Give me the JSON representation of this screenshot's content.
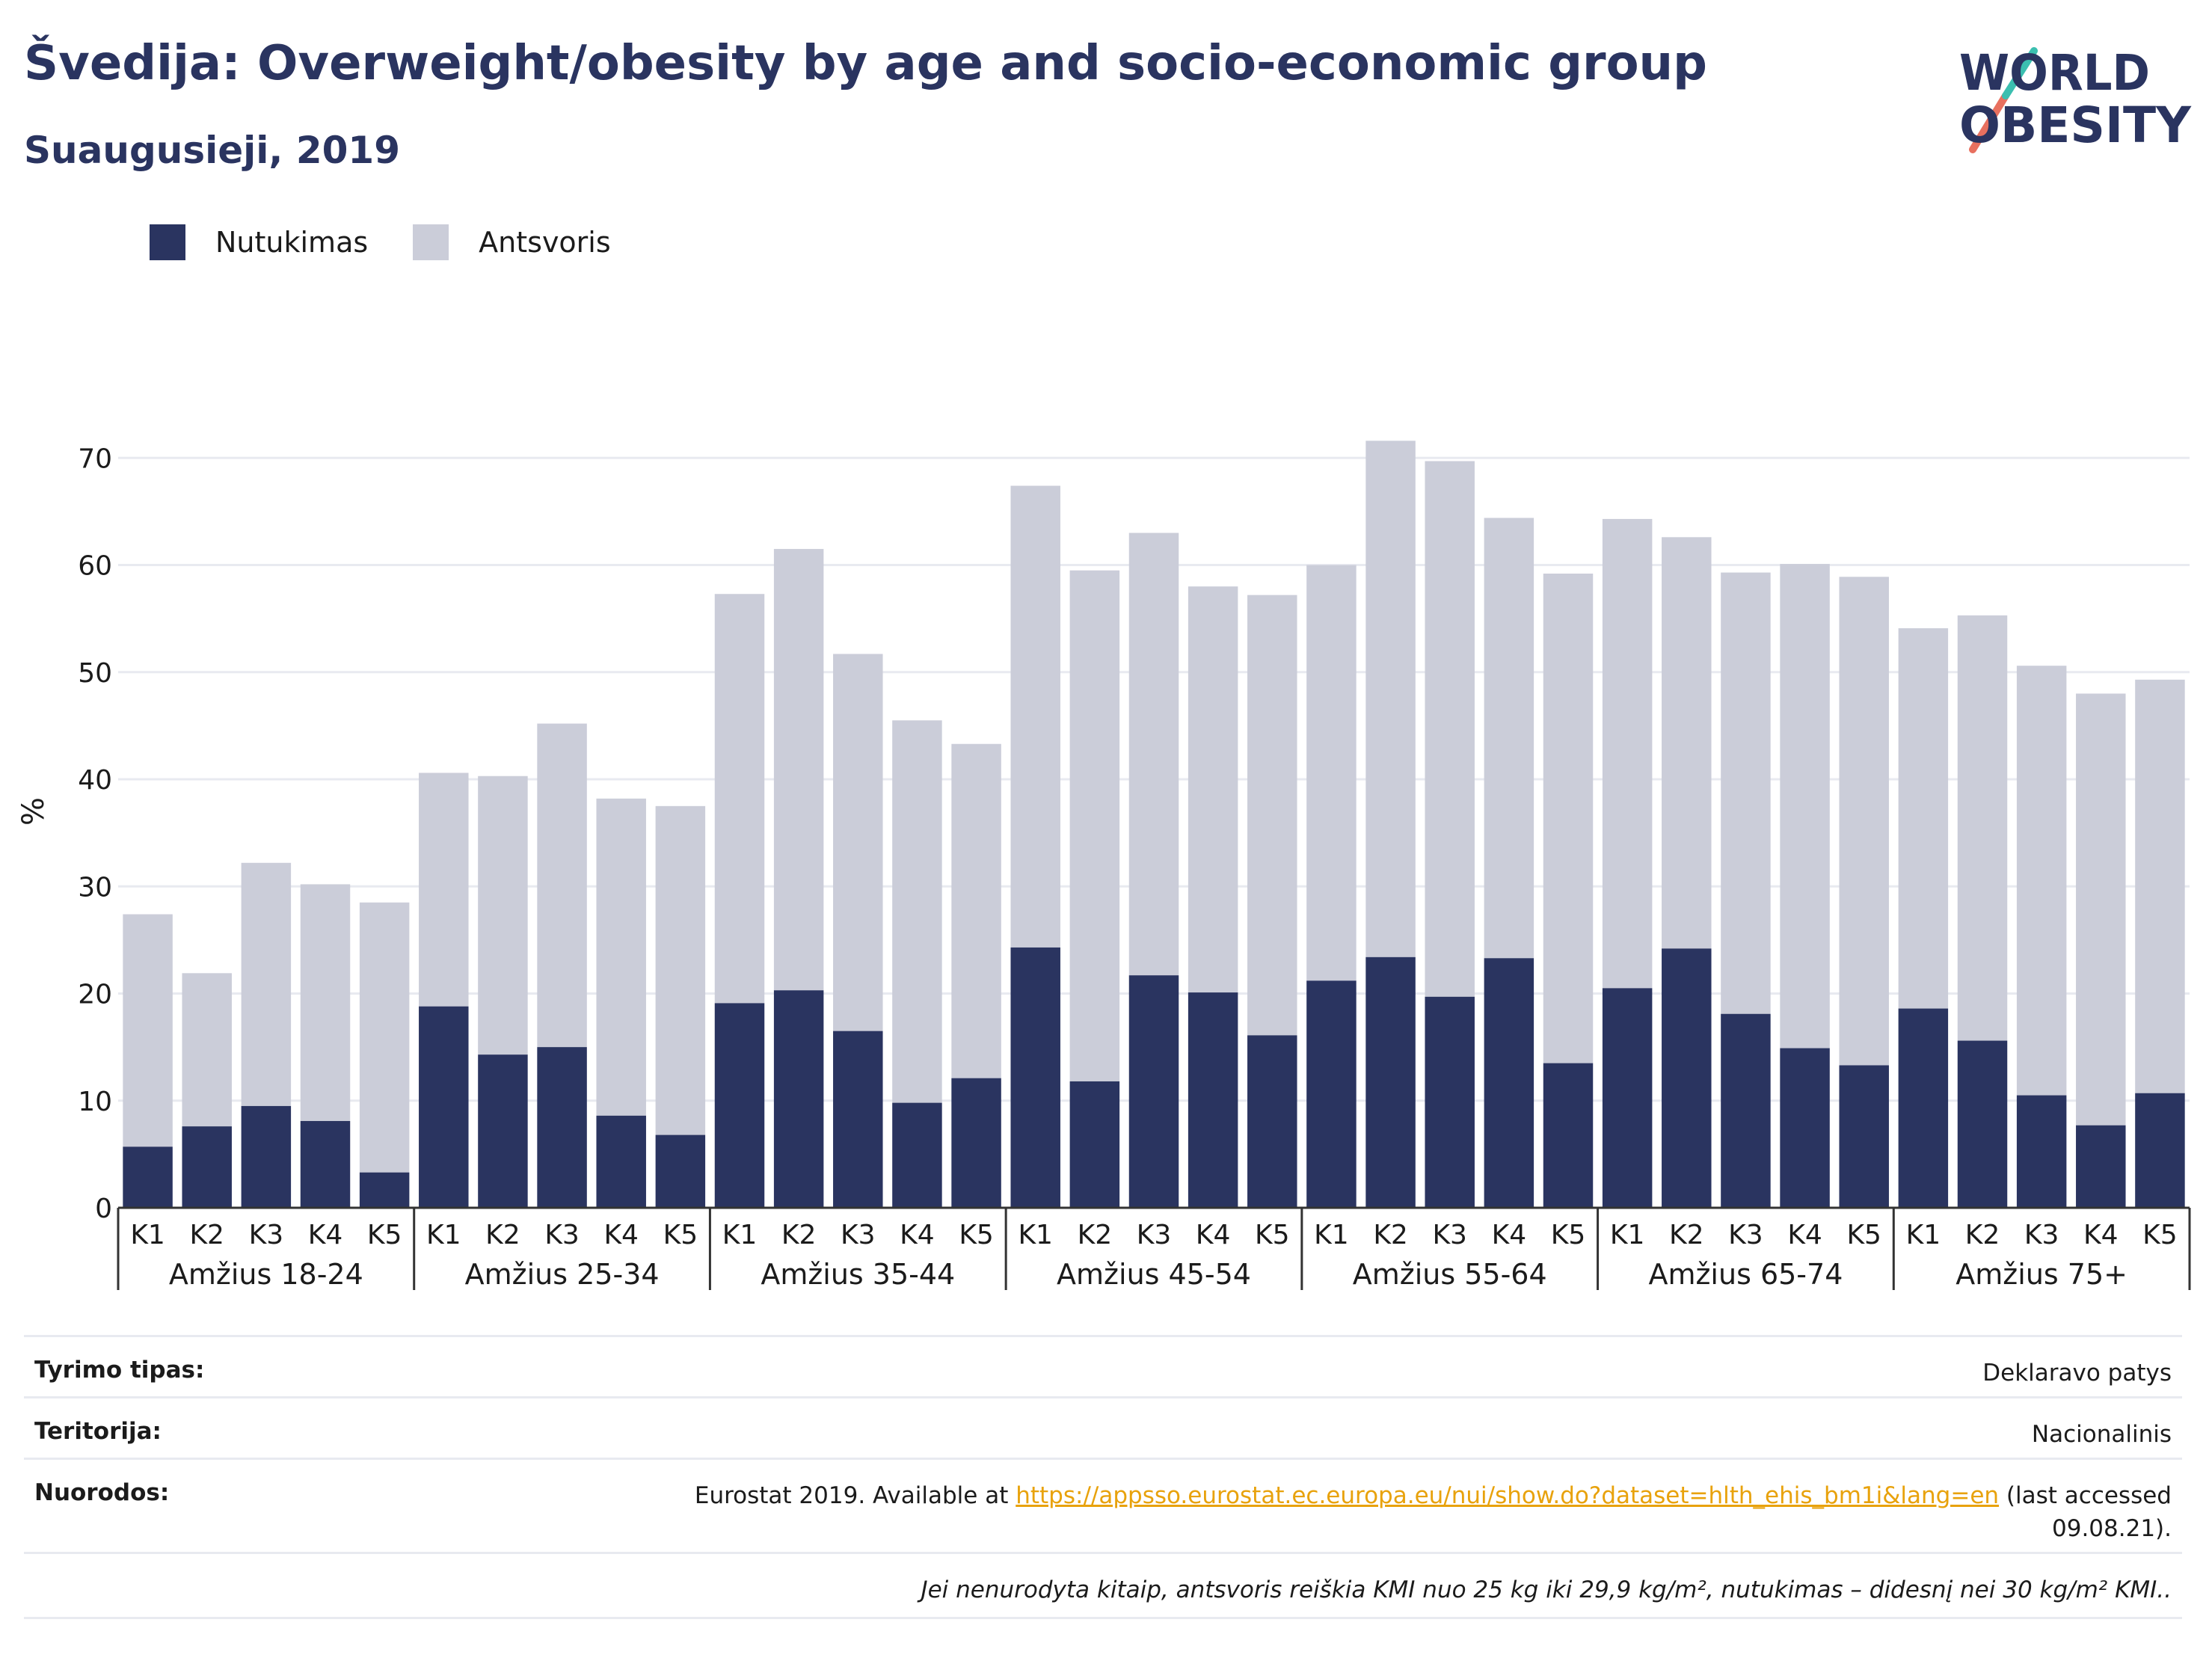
{
  "header": {
    "title": "Švedija: Overweight/obesity by age and socio-economic group",
    "subtitle": "Suaugusieji, 2019"
  },
  "logo": {
    "line1": "WORLD",
    "line2": "OBESITY",
    "colors": {
      "text": "#2a3460",
      "slash_top": "#3bbfb0",
      "slash_bottom": "#e8705f"
    }
  },
  "colors": {
    "obesity": "#2a3460",
    "overweight": "#cbcdd9",
    "grid": "#e8eaf0",
    "axis": "#333333"
  },
  "legend": [
    {
      "label": "Nutukimas",
      "color": "#2a3460"
    },
    {
      "label": "Antsvoris",
      "color": "#cbcdd9"
    }
  ],
  "chart_data": {
    "type": "bar",
    "stacked": true,
    "ylabel": "%",
    "ylim": [
      0,
      74
    ],
    "yticks": [
      0,
      10,
      20,
      30,
      40,
      50,
      60,
      70
    ],
    "grid": true,
    "legend_position": "top-left",
    "groups": [
      {
        "label": "Amžius 18-24",
        "categories": [
          "K1",
          "K2",
          "K3",
          "K4",
          "K5"
        ],
        "obesity": [
          5.7,
          7.6,
          9.5,
          8.1,
          3.3
        ],
        "total": [
          27.4,
          21.9,
          32.2,
          30.2,
          28.5
        ]
      },
      {
        "label": "Amžius 25-34",
        "categories": [
          "K1",
          "K2",
          "K3",
          "K4",
          "K5"
        ],
        "obesity": [
          18.8,
          14.3,
          15.0,
          8.6,
          6.8
        ],
        "total": [
          40.6,
          40.3,
          45.2,
          38.2,
          37.5
        ]
      },
      {
        "label": "Amžius 35-44",
        "categories": [
          "K1",
          "K2",
          "K3",
          "K4",
          "K5"
        ],
        "obesity": [
          19.1,
          20.3,
          16.5,
          9.8,
          12.1
        ],
        "total": [
          57.3,
          61.5,
          51.7,
          45.5,
          43.3
        ]
      },
      {
        "label": "Amžius 45-54",
        "categories": [
          "K1",
          "K2",
          "K3",
          "K4",
          "K5"
        ],
        "obesity": [
          24.3,
          11.8,
          21.7,
          20.1,
          16.1
        ],
        "total": [
          67.4,
          59.5,
          63.0,
          58.0,
          57.2
        ]
      },
      {
        "label": "Amžius 55-64",
        "categories": [
          "K1",
          "K2",
          "K3",
          "K4",
          "K5"
        ],
        "obesity": [
          21.2,
          23.4,
          19.7,
          23.3,
          13.5
        ],
        "total": [
          60.0,
          71.6,
          69.7,
          64.4,
          59.2
        ]
      },
      {
        "label": "Amžius 65-74",
        "categories": [
          "K1",
          "K2",
          "K3",
          "K4",
          "K5"
        ],
        "obesity": [
          20.5,
          24.2,
          18.1,
          14.9,
          13.3
        ],
        "total": [
          64.3,
          62.6,
          59.3,
          60.1,
          58.9
        ]
      },
      {
        "label": "Amžius 75+",
        "categories": [
          "K1",
          "K2",
          "K3",
          "K4",
          "K5"
        ],
        "obesity": [
          18.6,
          15.6,
          10.5,
          7.7,
          10.7
        ],
        "total": [
          54.1,
          55.3,
          50.6,
          48.0,
          49.3
        ]
      }
    ]
  },
  "info": {
    "survey_type": {
      "label": "Tyrimo tipas:",
      "value": "Deklaravo patys"
    },
    "territory": {
      "label": "Teritorija:",
      "value": "Nacionalinis"
    },
    "references": {
      "label": "Nuorodos:",
      "prefix": "Eurostat 2019. Available at ",
      "link": "https://appsso.eurostat.ec.europa.eu/nui/show.do?dataset=hlth_ehis_bm1i&lang=en",
      "suffix": " (last accessed",
      "suffix2": "09.08.21)."
    },
    "note": "Jei nenurodyta kitaip, antsvoris reiškia KMI nuo 25 kg iki 29,9 kg/m², nutukimas – didesnį nei 30 kg/m² KMI.."
  }
}
